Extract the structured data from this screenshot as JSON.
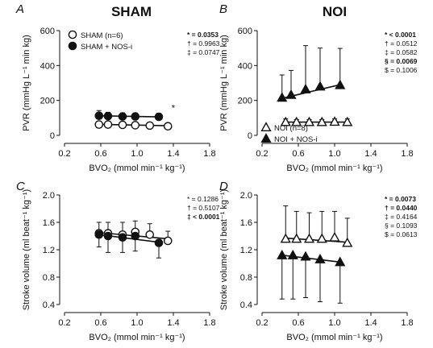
{
  "titles": {
    "left": "SHAM",
    "right": "NOI"
  },
  "panels": [
    {
      "id": "A",
      "ylabel": "PVR (mmHg L⁻¹ min kg)",
      "ylim": [
        0,
        600
      ],
      "yticks": [
        0,
        200,
        400,
        600
      ],
      "xlabel": "BVO₂ (mmol min⁻¹ kg⁻¹)",
      "xlim": [
        0.2,
        1.8
      ],
      "xticks": [
        "0.2",
        "0.6",
        "1.0",
        "1.4",
        "1.8"
      ],
      "stats": [
        {
          "text": "* = 0.0353",
          "bold": true
        },
        {
          "text": "† = 0.9963",
          "bold": false
        },
        {
          "text": "‡ = 0.0747",
          "bold": false
        }
      ],
      "legend": [
        "SHAM (n=6)",
        "SHAM + NOS-i"
      ],
      "annotation": "*"
    },
    {
      "id": "B",
      "ylabel": "PVR (mmHg L⁻¹ min kg)",
      "ylim": [
        0,
        600
      ],
      "yticks": [
        0,
        200,
        400,
        600
      ],
      "xlabel": "BVO₂ (mmol min⁻¹ kg⁻¹)",
      "xlim": [
        0.2,
        1.8
      ],
      "xticks": [
        "0.2",
        "0.6",
        "1.0",
        "1.4",
        "1.8"
      ],
      "stats": [
        {
          "text": "* < 0.0001",
          "bold": true
        },
        {
          "text": "† = 0.0512",
          "bold": false
        },
        {
          "text": "‡ = 0.0582",
          "bold": false
        },
        {
          "text": "§ = 0.0069",
          "bold": true
        },
        {
          "text": "$ = 0.1006",
          "bold": false
        }
      ],
      "legend": [
        "NOI (n=8)",
        "NOI + NOS-i"
      ]
    },
    {
      "id": "C",
      "ylabel": "Stroke volume (ml beat⁻¹ kg⁻¹)",
      "ylim": [
        0.4,
        2.0
      ],
      "yticks": [
        0.4,
        0.8,
        1.2,
        1.6,
        2.0
      ],
      "xlabel": "BVO₂ (mmol min⁻¹ kg⁻¹)",
      "xlim": [
        0.2,
        1.8
      ],
      "xticks": [
        "0.2",
        "0.6",
        "1.0",
        "1.4",
        "1.8"
      ],
      "stats": [
        {
          "text": "* = 0.1286",
          "bold": false
        },
        {
          "text": "† = 0.5107",
          "bold": false
        },
        {
          "text": "‡ < 0.0001",
          "bold": true
        }
      ]
    },
    {
      "id": "D",
      "ylabel": "Stroke volume (ml beat⁻¹ kg⁻¹)",
      "ylim": [
        0.4,
        2.0
      ],
      "yticks": [
        0.4,
        0.8,
        1.2,
        1.6,
        2.0
      ],
      "xlabel": "BVO₂ (mmol min⁻¹ kg⁻¹)",
      "xlim": [
        0.2,
        1.8
      ],
      "xticks": [
        "0.2",
        "0.6",
        "1.0",
        "1.4",
        "1.8"
      ],
      "stats": [
        {
          "text": "* = 0.0073",
          "bold": true
        },
        {
          "text": "† = 0.0440",
          "bold": true
        },
        {
          "text": "‡ = 0.4164",
          "bold": false
        },
        {
          "text": "§ = 0.1093",
          "bold": false
        },
        {
          "text": "$ = 0.0613",
          "bold": false
        }
      ]
    }
  ],
  "chart_data": [
    {
      "type": "scatter",
      "panel": "A",
      "ylim": [
        0,
        600
      ],
      "xlim": [
        0.2,
        1.8
      ],
      "series": [
        {
          "name": "SHAM (n=6)",
          "marker": "circle-open",
          "x": [
            0.58,
            0.68,
            0.84,
            0.98,
            1.14,
            1.34
          ],
          "y": [
            62,
            62,
            60,
            58,
            56,
            52
          ],
          "err": [
            14,
            12,
            12,
            12,
            10,
            10
          ],
          "fit": [
            [
              0.58,
              63
            ],
            [
              1.34,
              55
            ]
          ]
        },
        {
          "name": "SHAM + NOS-i",
          "marker": "circle-filled",
          "x": [
            0.58,
            0.68,
            0.84,
            0.98,
            1.24
          ],
          "y": [
            112,
            110,
            108,
            108,
            106
          ],
          "err": [
            30,
            22,
            20,
            20,
            20
          ],
          "fit": [
            [
              0.58,
              112
            ],
            [
              1.24,
              106
            ]
          ]
        }
      ]
    },
    {
      "type": "scatter",
      "panel": "B",
      "ylim": [
        0,
        600
      ],
      "xlim": [
        0.2,
        1.8
      ],
      "series": [
        {
          "name": "NOI (n=8)",
          "marker": "triangle-open",
          "x": [
            0.46,
            0.58,
            0.72,
            0.86,
            1.0,
            1.14
          ],
          "y": [
            76,
            76,
            76,
            76,
            78,
            76
          ],
          "err": [
            18,
            14,
            14,
            14,
            16,
            18
          ],
          "fit": [
            [
              0.46,
              76
            ],
            [
              1.14,
              76
            ]
          ]
        },
        {
          "name": "NOI + NOS-i",
          "marker": "triangle-filled",
          "x": [
            0.42,
            0.52,
            0.68,
            0.84,
            1.06
          ],
          "y": [
            216,
            232,
            264,
            280,
            288
          ],
          "err": [
            130,
            140,
            250,
            220,
            210
          ],
          "fit": [
            [
              0.42,
              212
            ],
            [
              1.06,
              290
            ]
          ]
        }
      ]
    },
    {
      "type": "scatter",
      "panel": "C",
      "ylim": [
        0.4,
        2.0
      ],
      "xlim": [
        0.2,
        1.8
      ],
      "series": [
        {
          "name": "SHAM",
          "marker": "circle-open",
          "x": [
            0.58,
            0.68,
            0.84,
            0.98,
            1.14,
            1.34
          ],
          "y": [
            1.44,
            1.44,
            1.42,
            1.46,
            1.42,
            1.33
          ],
          "err": [
            0.16,
            0.16,
            0.18,
            0.16,
            0.16,
            0.14
          ],
          "fit": [
            [
              0.58,
              1.45
            ],
            [
              1.34,
              1.36
            ]
          ]
        },
        {
          "name": "SHAM + NOS-i",
          "marker": "circle-filled",
          "x": [
            0.58,
            0.68,
            0.84,
            0.98,
            1.24
          ],
          "y": [
            1.42,
            1.4,
            1.38,
            1.4,
            1.3
          ],
          "err": [
            0.18,
            0.24,
            0.22,
            0.22,
            0.22
          ],
          "fit": [
            [
              0.58,
              1.42
            ],
            [
              1.24,
              1.31
            ]
          ]
        }
      ]
    },
    {
      "type": "scatter",
      "panel": "D",
      "ylim": [
        0.4,
        2.0
      ],
      "xlim": [
        0.2,
        1.8
      ],
      "series": [
        {
          "name": "NOI",
          "marker": "triangle-open",
          "x": [
            0.46,
            0.58,
            0.72,
            0.86,
            1.0,
            1.14
          ],
          "y": [
            1.36,
            1.36,
            1.36,
            1.36,
            1.38,
            1.3
          ],
          "err": [
            0.48,
            0.4,
            0.38,
            0.4,
            0.38,
            0.36
          ],
          "fit": [
            [
              0.46,
              1.37
            ],
            [
              1.14,
              1.31
            ]
          ]
        },
        {
          "name": "NOI + NOS-i",
          "marker": "triangle-filled",
          "x": [
            0.42,
            0.54,
            0.68,
            0.84,
            1.06
          ],
          "y": [
            1.12,
            1.12,
            1.1,
            1.06,
            1.02
          ],
          "err": [
            0.64,
            0.64,
            0.6,
            0.62,
            0.6
          ],
          "fit": [
            [
              0.42,
              1.12
            ],
            [
              1.06,
              1.02
            ]
          ]
        }
      ]
    }
  ]
}
